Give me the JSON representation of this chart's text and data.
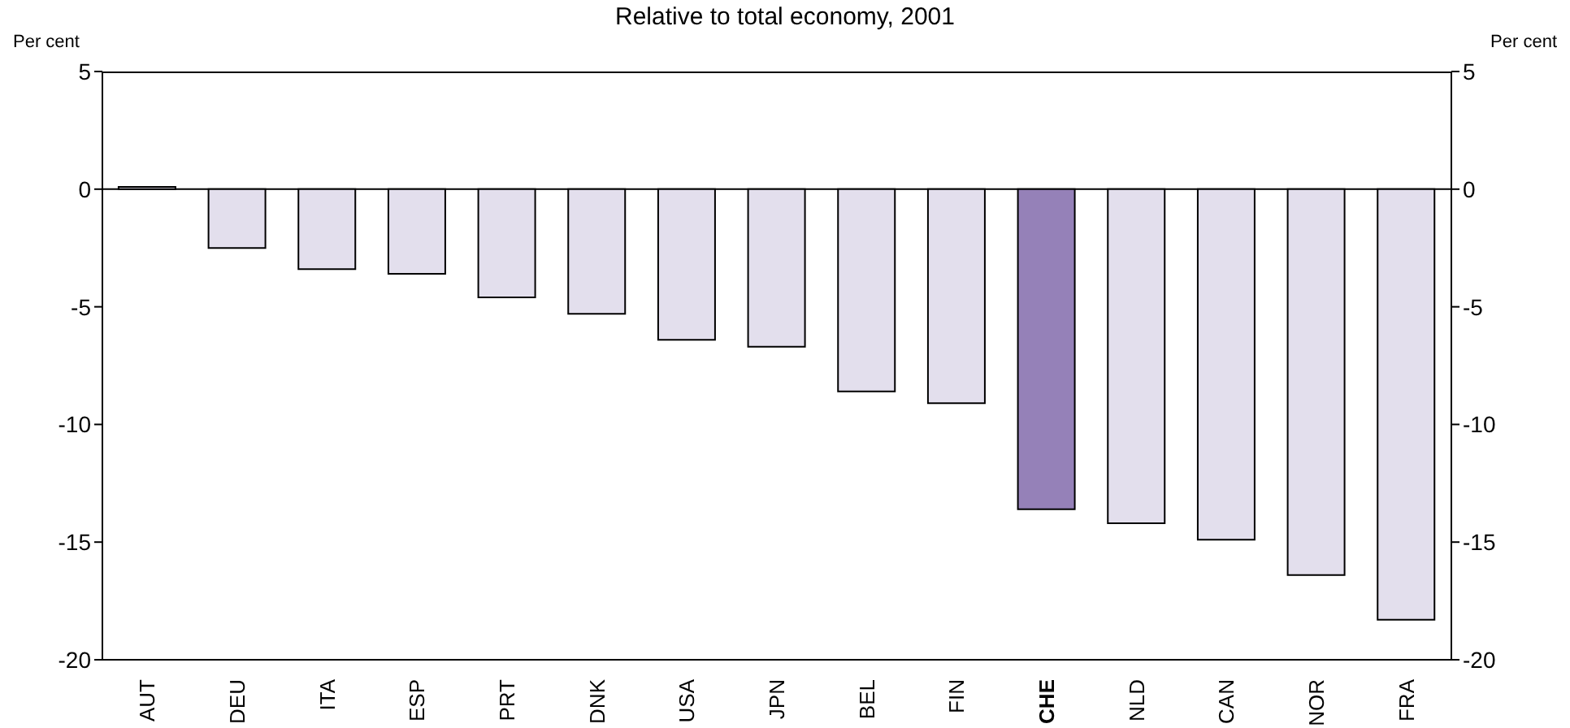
{
  "chart_data": {
    "type": "bar",
    "title": "Relative to total economy, 2001",
    "ylabel": "Per cent",
    "y2label": "Per cent",
    "categories": [
      "AUT",
      "DEU",
      "ITA",
      "ESP",
      "PRT",
      "DNK",
      "USA",
      "JPN",
      "BEL",
      "FIN",
      "CHE",
      "NLD",
      "CAN",
      "NOR",
      "FRA"
    ],
    "values": [
      0.1,
      -2.5,
      -3.4,
      -3.6,
      -4.6,
      -5.3,
      -6.4,
      -6.7,
      -8.6,
      -9.1,
      -13.6,
      -14.2,
      -14.9,
      -16.4,
      -18.3
    ],
    "colors": [
      "#e3dfed",
      "#e3dfed",
      "#e3dfed",
      "#e3dfed",
      "#e3dfed",
      "#e3dfed",
      "#e3dfed",
      "#e3dfed",
      "#e3dfed",
      "#e3dfed",
      "#9581b8",
      "#e3dfed",
      "#e3dfed",
      "#e3dfed",
      "#e3dfed"
    ],
    "ylim": [
      -20,
      5
    ],
    "yticks": [
      -20,
      -15,
      -10,
      -5,
      0,
      5
    ],
    "y2lim": [
      -20,
      5
    ],
    "y2ticks": [
      -20,
      -15,
      -10,
      -5,
      0,
      5
    ],
    "ref_lines": [
      {
        "axis": "y",
        "value": 0,
        "color": "#000000"
      }
    ]
  }
}
